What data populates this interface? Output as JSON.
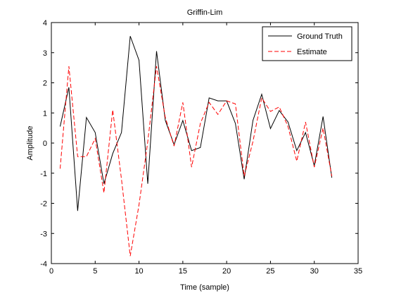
{
  "chart_data": {
    "type": "line",
    "title": "Griffin-Lim",
    "xlabel": "Time (sample)",
    "ylabel": "Amplitude",
    "xlim": [
      0,
      35
    ],
    "ylim": [
      -4,
      4
    ],
    "xticks": [
      0,
      5,
      10,
      15,
      20,
      25,
      30,
      35
    ],
    "yticks": [
      -4,
      -3,
      -2,
      -1,
      0,
      1,
      2,
      3,
      4
    ],
    "grid": false,
    "legend_position": "top-right",
    "x": [
      1,
      2,
      3,
      4,
      5,
      6,
      7,
      8,
      9,
      10,
      11,
      12,
      13,
      14,
      15,
      16,
      17,
      18,
      19,
      20,
      21,
      22,
      23,
      24,
      25,
      26,
      27,
      28,
      29,
      30,
      31,
      32
    ],
    "series": [
      {
        "name": "Ground Truth",
        "color": "#000000",
        "style": "solid",
        "values": [
          0.55,
          1.85,
          -2.25,
          0.85,
          0.35,
          -1.35,
          -0.35,
          0.35,
          3.55,
          2.75,
          -1.35,
          3.05,
          0.75,
          -0.05,
          0.75,
          -0.25,
          -0.15,
          1.5,
          1.4,
          1.4,
          0.65,
          -1.2,
          0.75,
          1.62,
          0.48,
          1.08,
          0.7,
          -0.25,
          0.35,
          -0.75,
          0.88,
          -1.15
        ]
      },
      {
        "name": "Estimate",
        "color": "#ff0000",
        "style": "dashed",
        "values": [
          -0.85,
          2.55,
          -0.45,
          -0.45,
          0.15,
          -1.65,
          1.1,
          -1.2,
          -3.75,
          -2.05,
          0.05,
          2.55,
          0.85,
          -0.1,
          1.35,
          -0.8,
          0.65,
          1.35,
          0.95,
          1.4,
          1.3,
          -1.1,
          0.05,
          1.5,
          1.05,
          1.2,
          0.55,
          -0.6,
          0.7,
          -0.8,
          0.5,
          -1.1
        ]
      }
    ]
  }
}
